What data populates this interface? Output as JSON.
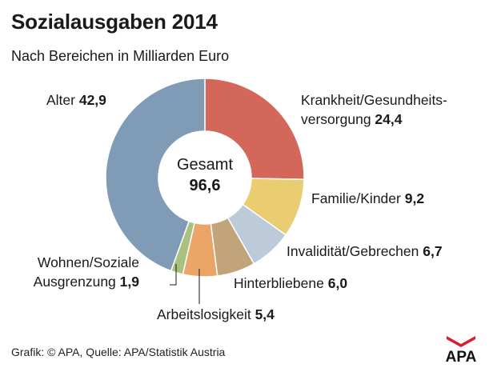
{
  "header": {
    "title": "Sozialausgaben 2014",
    "subtitle": "Nach Bereichen in Milliarden Euro"
  },
  "chart_data": {
    "type": "pie",
    "variant": "donut",
    "title": "Sozialausgaben 2014",
    "subtitle": "Nach Bereichen in Milliarden Euro",
    "unit": "Milliarden Euro",
    "total_label": "Gesamt",
    "total_value": "96,6",
    "slices": [
      {
        "key": "krankheit",
        "label": "Krankheit/Gesundheitsversorgung",
        "label_lines": [
          "Krankheit/Gesundheits-",
          "versorgung"
        ],
        "value": 24.4,
        "value_text": "24,4",
        "color": "#d2675a"
      },
      {
        "key": "familie",
        "label": "Familie/Kinder",
        "label_lines": [
          "Familie/Kinder"
        ],
        "value": 9.2,
        "value_text": "9,2",
        "color": "#e9cd70"
      },
      {
        "key": "invaliditaet",
        "label": "Invalidität/Gebrechen",
        "label_lines": [
          "Invalidität/Gebrechen"
        ],
        "value": 6.7,
        "value_text": "6,7",
        "color": "#bccad9"
      },
      {
        "key": "hinterbliebene",
        "label": "Hinterbliebene",
        "label_lines": [
          "Hinterbliebene"
        ],
        "value": 6.0,
        "value_text": "6,0",
        "color": "#c2a47a"
      },
      {
        "key": "arbeitslosigkeit",
        "label": "Arbeitslosigkeit",
        "label_lines": [
          "Arbeitslosigkeit"
        ],
        "value": 5.4,
        "value_text": "5,4",
        "color": "#eba567"
      },
      {
        "key": "wohnen",
        "label": "Wohnen/Soziale Ausgrenzung",
        "label_lines": [
          "Wohnen/Soziale",
          "Ausgrenzung"
        ],
        "value": 1.9,
        "value_text": "1,9",
        "color": "#a9c07f"
      },
      {
        "key": "alter",
        "label": "Alter",
        "label_lines": [
          "Alter"
        ],
        "value": 42.9,
        "value_text": "42,9",
        "color": "#7f9bb6"
      }
    ]
  },
  "footer": {
    "source": "Grafik: © APA, Quelle: APA/Statistik Austria",
    "logo_text": "APA"
  }
}
